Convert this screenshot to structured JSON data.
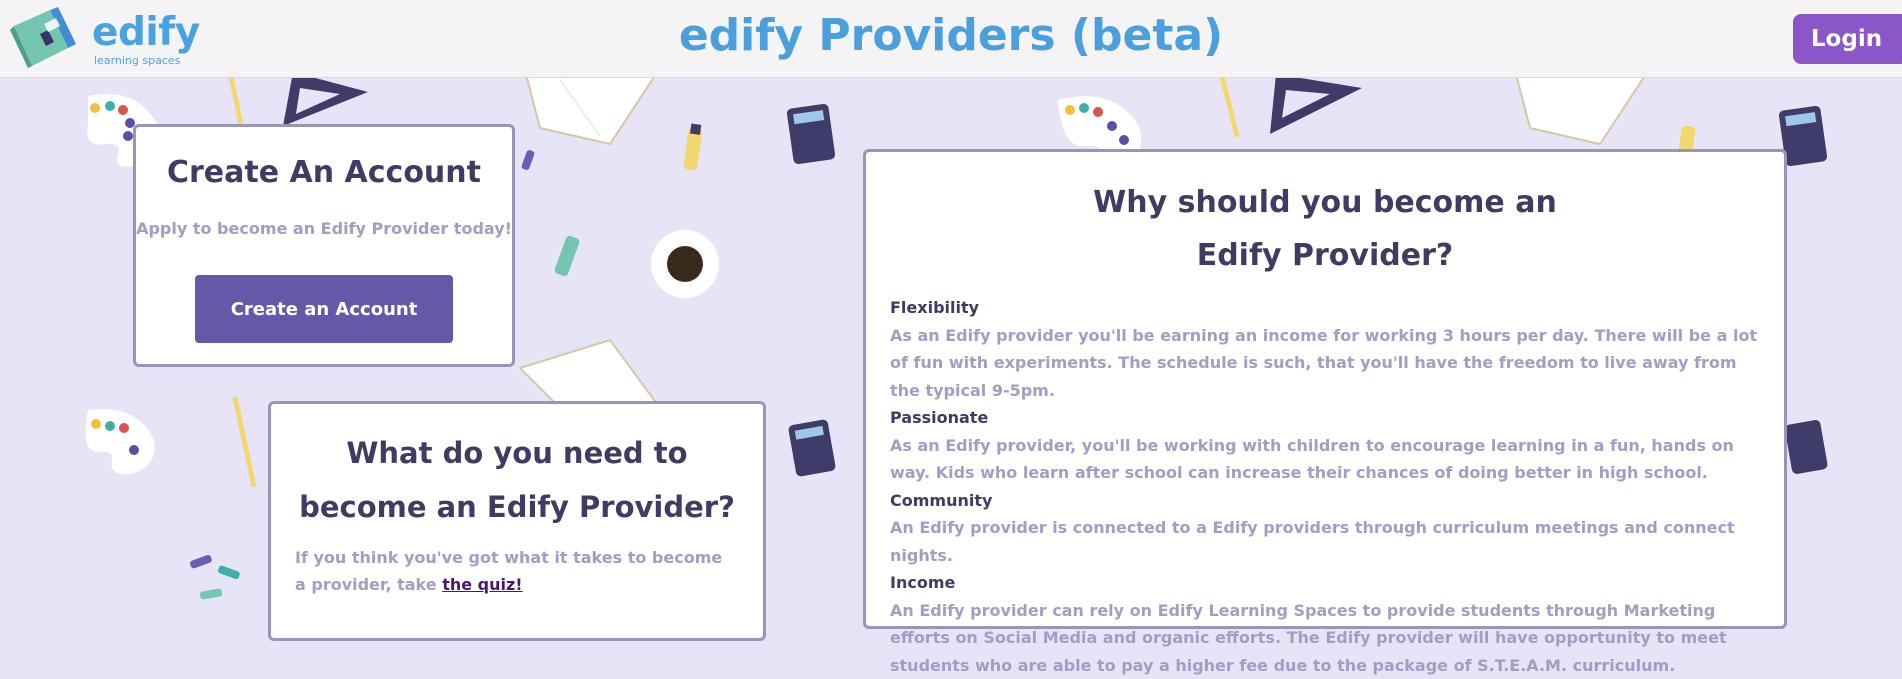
{
  "header": {
    "logo_word": "edify",
    "logo_tagline": "learning spaces",
    "title": "edify Providers (beta)",
    "login_label": "Login"
  },
  "create_account": {
    "heading": "Create An Account",
    "subtitle": "Apply to become an Edify Provider today!",
    "button_label": "Create an Account"
  },
  "requirements": {
    "heading_line1": "What do you need to",
    "heading_line2": "become an Edify Provider?",
    "text_before_link": "If you think you've got what it takes to become a provider, take ",
    "link_label": "the quiz!"
  },
  "why": {
    "heading_line1": "Why should you become an",
    "heading_line2": "Edify Provider?",
    "items": [
      {
        "term": "Flexibility",
        "description": "As an Edify provider you'll be earning an income for working 3 hours per day. There will be a lot of fun with experiments. The schedule is such, that you'll have the freedom to live away from the typical 9-5pm."
      },
      {
        "term": "Passionate",
        "description": "As an Edify provider, you'll be working with children to encourage learning in a fun, hands on way. Kids who learn after school can increase their chances of doing better in high school."
      },
      {
        "term": "Community",
        "description": "An Edify provider is connected to a Edify providers through curriculum meetings and connect nights."
      },
      {
        "term": "Income",
        "description": "An Edify provider can rely on Edify Learning Spaces to provide students through Marketing efforts on Social Media and organic efforts. The Edify provider will have opportunity to meet students who are able to pay a higher fee due to the package of S.T.E.A.M. curriculum."
      }
    ]
  },
  "icons": {
    "logo": "book-logo-icon",
    "background": [
      "palette-icon",
      "pencil-icon",
      "set-square-icon",
      "open-book-icon",
      "highlighter-icon",
      "calculator-icon",
      "coffee-cup-icon",
      "paint-brush-icon"
    ]
  },
  "colors": {
    "brand_blue": "#4a9fdc",
    "login_purple": "#8a56c8",
    "button_indigo": "#6459a8",
    "heading_dark": "#3f3b63",
    "text_muted": "#a19ec2",
    "page_background": "#e7e4f8"
  }
}
